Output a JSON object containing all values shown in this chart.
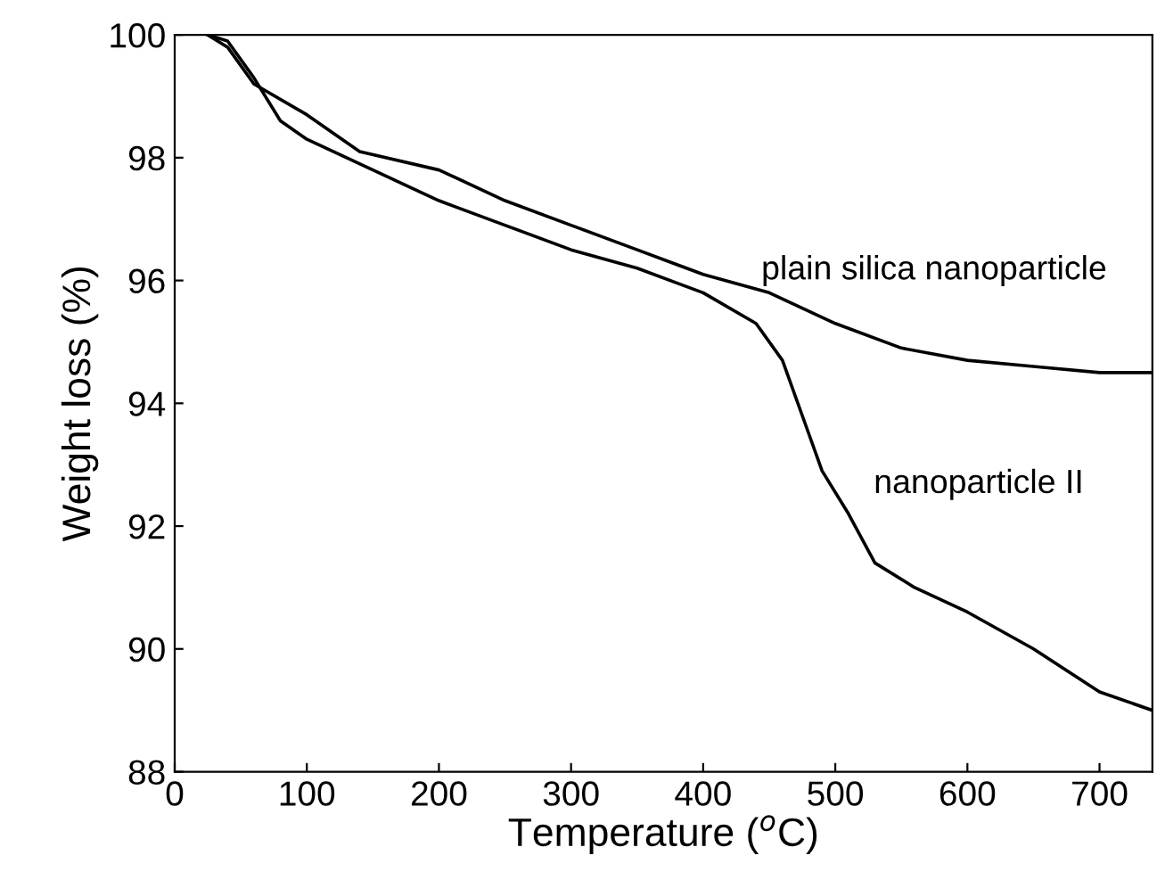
{
  "chart_data": {
    "type": "line",
    "xlabel": "Temperature ($^{o}$C)",
    "ylabel": "Weight loss (%)",
    "xlim": [
      0,
      740
    ],
    "ylim": [
      88,
      100
    ],
    "xticks": [
      0,
      100,
      200,
      300,
      400,
      500,
      600,
      700
    ],
    "yticks": [
      88,
      90,
      92,
      94,
      96,
      98,
      100
    ],
    "grid": false,
    "legend": false,
    "marker": "none",
    "line_style": "solid",
    "series": [
      {
        "color": "#000000",
        "x": [
          25,
          40,
          60,
          100,
          140,
          200,
          250,
          300,
          350,
          400,
          450,
          500,
          550,
          600,
          650,
          700,
          740
        ],
        "values": [
          100,
          99.8,
          99.2,
          98.7,
          98.1,
          97.8,
          97.3,
          96.9,
          96.5,
          96.1,
          95.8,
          95.3,
          94.9,
          94.7,
          94.6,
          94.5,
          94.5
        ]
      },
      {
        "color": "#000000",
        "x": [
          25,
          40,
          60,
          80,
          100,
          150,
          200,
          250,
          300,
          350,
          400,
          440,
          460,
          480,
          490,
          510,
          530,
          560,
          600,
          650,
          700,
          740
        ],
        "values": [
          100,
          99.9,
          99.3,
          98.6,
          98.3,
          97.8,
          97.3,
          96.9,
          96.5,
          96.2,
          95.8,
          95.3,
          94.7,
          93.5,
          92.9,
          92.2,
          91.4,
          91.0,
          90.6,
          90.0,
          89.3,
          89.0
        ]
      }
    ],
    "annotations": [
      "plain silica nanoparticle",
      "nanoparticle II"
    ]
  }
}
